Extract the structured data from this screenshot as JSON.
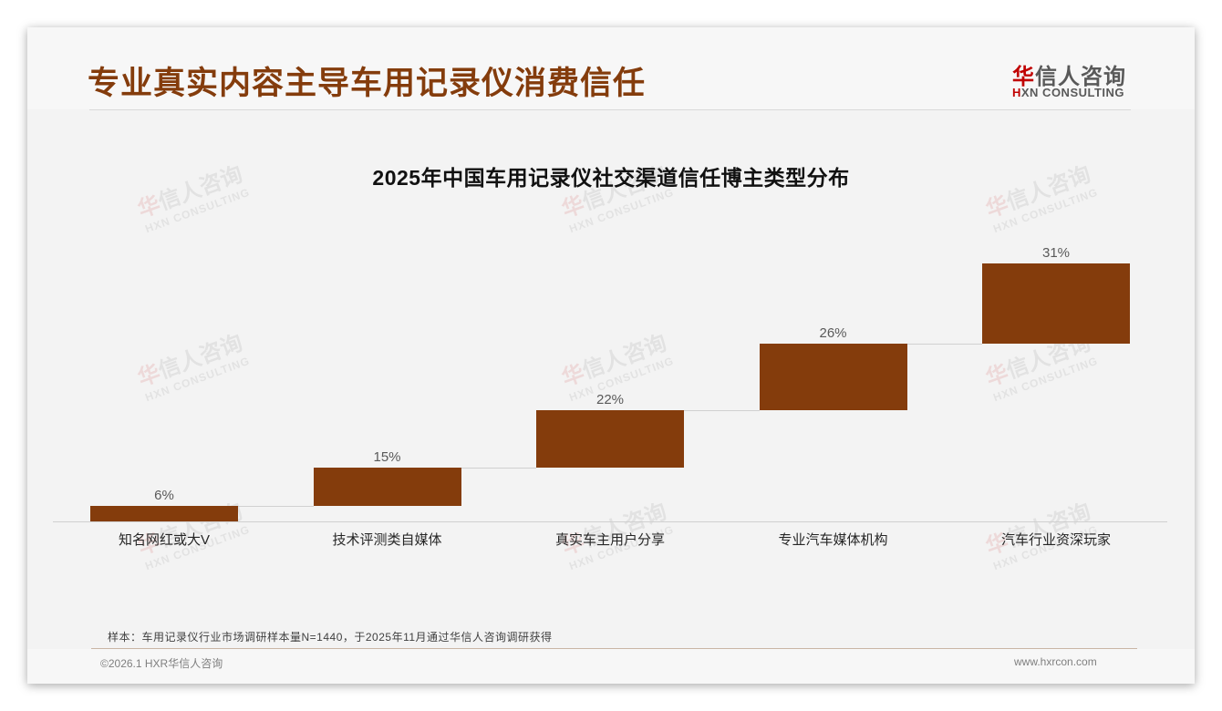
{
  "slide": {
    "title": "专业真实内容主导车用记录仪消费信任",
    "logo": {
      "cn_accent": "华",
      "cn_rest": "信人咨询",
      "en_accent": "H",
      "en_rest": "XN CONSULTING"
    },
    "watermark": {
      "cn_accent": "华",
      "cn_rest": "信人咨询",
      "en": "HXN CONSULTING"
    },
    "footer": {
      "note": "样本：车用记录仪行业市场调研样本量N=1440，于2025年11月通过华信人咨询调研获得",
      "copyright": "©2026.1 HXR华信人咨询",
      "website": "www.hxrcon.com"
    }
  },
  "colors": {
    "accent": "#843c0c",
    "bar": "#843c0c",
    "logo_red": "#c00000",
    "background": "#f3f3f3"
  },
  "chart_data": {
    "type": "bar",
    "subtype": "waterfall",
    "title": "2025年中国车用记录仪社交渠道信任博主类型分布",
    "categories": [
      "知名网红或大V",
      "技术评测类自媒体",
      "真实车主用户分享",
      "专业汽车媒体机构",
      "汽车行业资深玩家"
    ],
    "values": [
      6,
      15,
      22,
      26,
      31
    ],
    "value_labels": [
      "6%",
      "15%",
      "22%",
      "26%",
      "31%"
    ],
    "cumulative_start": [
      0,
      6,
      21,
      43,
      69
    ],
    "unit": "%",
    "xlabel": "",
    "ylabel": "",
    "ylim": [
      0,
      100
    ],
    "grid": false,
    "legend": null,
    "connectors": true
  }
}
